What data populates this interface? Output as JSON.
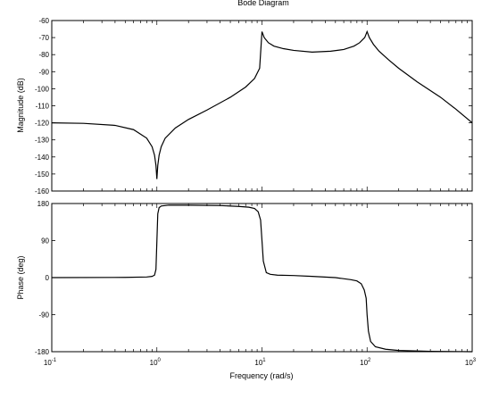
{
  "chart_data": {
    "type": "line",
    "title": "Bode Diagram",
    "xlabel": "Frequency  (rad/s)",
    "xscale": "log",
    "xlim": [
      0.1,
      1000
    ],
    "x_ticks": [
      0.1,
      1,
      10,
      100,
      1000
    ],
    "x_tick_labels": [
      {
        "base": "10",
        "exp": "-1"
      },
      {
        "base": "10",
        "exp": "0"
      },
      {
        "base": "10",
        "exp": "1"
      },
      {
        "base": "10",
        "exp": "2"
      },
      {
        "base": "10",
        "exp": "3"
      }
    ],
    "grid": false,
    "panels": [
      {
        "name": "magnitude",
        "ylabel": "Magnitude (dB)",
        "ylim": [
          -160,
          -60
        ],
        "y_ticks": [
          -60,
          -70,
          -80,
          -90,
          -100,
          -110,
          -120,
          -130,
          -140,
          -150,
          -160
        ],
        "y_tick_labels": [
          "-60",
          "-70",
          "-80",
          "-90",
          "-100",
          "-110",
          "-120",
          "-130",
          "-140",
          "-150",
          "-160"
        ],
        "series": [
          {
            "x": [
              0.1,
              0.2,
              0.4,
              0.6,
              0.8,
              0.9,
              0.95,
              0.98,
              1.0,
              1.02,
              1.05,
              1.1,
              1.2,
              1.5,
              2,
              3,
              5,
              7,
              8.5,
              9.5,
              10,
              10.5,
              11.5,
              13,
              16,
              20,
              30,
              45,
              60,
              75,
              85,
              95,
              100,
              105,
              115,
              130,
              160,
              200,
              300,
              500,
              700,
              1000
            ],
            "values": [
              -120,
              -120.3,
              -121.5,
              -124,
              -129,
              -134,
              -139,
              -145,
              -153,
              -145,
              -139,
              -134,
              -129,
              -123,
              -118,
              -112.5,
              -105,
              -99,
              -94,
              -88,
              -66.5,
              -70,
              -73,
              -75,
              -76.5,
              -77.5,
              -78.5,
              -78,
              -77,
              -75,
              -73,
              -70,
              -66.5,
              -70,
              -74,
              -78,
              -83,
              -88,
              -96,
              -105,
              -112,
              -120
            ]
          }
        ]
      },
      {
        "name": "phase",
        "ylabel": "Phase (deg)",
        "ylim": [
          -180,
          180
        ],
        "y_ticks": [
          180,
          90,
          0,
          -90,
          -180
        ],
        "y_tick_labels": [
          "180",
          "90",
          "0",
          "-90",
          "-180"
        ],
        "series": [
          {
            "x": [
              0.1,
              0.5,
              0.8,
              0.9,
              0.95,
              0.98,
              1.0,
              1.02,
              1.05,
              1.1,
              1.3,
              2,
              4,
              6,
              7.5,
              8.5,
              9.2,
              9.7,
              10,
              10.3,
              11,
              12,
              14,
              20,
              30,
              50,
              70,
              80,
              88,
              94,
              98,
              100,
              103,
              108,
              120,
              150,
              200,
              400,
              1000
            ],
            "values": [
              0,
              0.5,
              1.5,
              3,
              6,
              20,
              88,
              155,
              170,
              174,
              176,
              176,
              175,
              173,
              171,
              168,
              160,
              140,
              90,
              40,
              12,
              8,
              6,
              5,
              3,
              0,
              -5,
              -8,
              -15,
              -30,
              -50,
              -90,
              -130,
              -155,
              -168,
              -174,
              -177,
              -179,
              -180
            ]
          }
        ]
      }
    ]
  }
}
